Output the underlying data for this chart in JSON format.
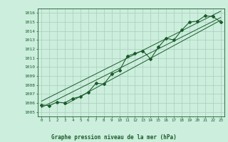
{
  "title": "Graphe pression niveau de la mer (hPa)",
  "bg_color": "#cceedd",
  "grid_color": "#aaccbb",
  "line_color": "#1a5c2a",
  "ylim": [
    1004.5,
    1016.5
  ],
  "xlim": [
    -0.5,
    23.5
  ],
  "yticks": [
    1005,
    1006,
    1007,
    1008,
    1009,
    1010,
    1011,
    1012,
    1013,
    1014,
    1015,
    1016
  ],
  "xticks": [
    0,
    1,
    2,
    3,
    4,
    5,
    6,
    7,
    8,
    9,
    10,
    11,
    12,
    13,
    14,
    15,
    16,
    17,
    18,
    19,
    20,
    21,
    22,
    23
  ],
  "xtick_labels": [
    "0",
    "1",
    "2",
    "3",
    "4",
    "5",
    "6",
    "7",
    "8",
    "9",
    "10",
    "11",
    "12",
    "13",
    "14",
    "15",
    "16",
    "17",
    "18",
    "19",
    "20",
    "21",
    "22",
    "23"
  ],
  "data_x": [
    0,
    1,
    2,
    3,
    4,
    5,
    6,
    7,
    8,
    9,
    10,
    11,
    12,
    13,
    14,
    15,
    16,
    17,
    18,
    19,
    20,
    21,
    22,
    23
  ],
  "data_y": [
    1005.8,
    1005.7,
    1006.1,
    1006.0,
    1006.5,
    1006.7,
    1007.2,
    1008.2,
    1008.1,
    1009.2,
    1009.6,
    1011.2,
    1011.5,
    1011.8,
    1010.9,
    1012.2,
    1013.2,
    1013.0,
    1014.1,
    1015.0,
    1015.1,
    1015.7,
    1015.6,
    1015.0
  ],
  "trend1_x": [
    0,
    23
  ],
  "trend1_y": [
    1005.5,
    1015.5
  ],
  "trend2_x": [
    0,
    23
  ],
  "trend2_y": [
    1006.2,
    1016.2
  ],
  "trend3_x": [
    3,
    23
  ],
  "trend3_y": [
    1005.8,
    1015.2
  ]
}
